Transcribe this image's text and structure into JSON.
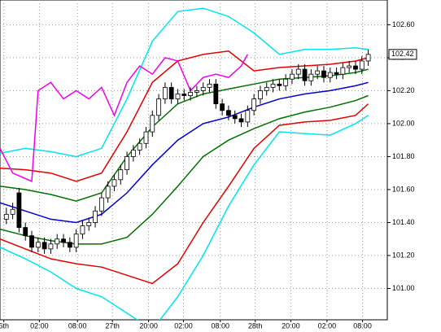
{
  "chart_data": {
    "type": "candlestick",
    "xlim": [
      0,
      61
    ],
    "ylim": [
      100.81,
      102.75
    ],
    "yticks": [
      {
        "value": 101.0,
        "label": "101.00"
      },
      {
        "value": 101.2,
        "label": "101.20"
      },
      {
        "value": 101.4,
        "label": "101.40"
      },
      {
        "value": 101.6,
        "label": "101.60"
      },
      {
        "value": 101.8,
        "label": "101.80"
      },
      {
        "value": 102.0,
        "label": "102.00"
      },
      {
        "value": 102.2,
        "label": "102.20"
      },
      {
        "value": 102.4,
        "label": "102.40"
      },
      {
        "value": 102.6,
        "label": "102.60"
      }
    ],
    "xticks": [
      {
        "value": 0.6,
        "label": "6th"
      },
      {
        "value": 6.2,
        "label": "02:00"
      },
      {
        "value": 12.2,
        "label": "08:00"
      },
      {
        "value": 17.7,
        "label": "27th"
      },
      {
        "value": 23.4,
        "label": "20:00"
      },
      {
        "value": 28.9,
        "label": "02:00"
      },
      {
        "value": 34.7,
        "label": "08:00"
      },
      {
        "value": 40.2,
        "label": "28th"
      },
      {
        "value": 45.8,
        "label": "20:00"
      },
      {
        "value": 51.5,
        "label": "02:00"
      },
      {
        "value": 57.1,
        "label": "08:00"
      }
    ],
    "grid": true,
    "candles": {
      "x": [
        1,
        2,
        3,
        4,
        5,
        6,
        7,
        8,
        9,
        10,
        11,
        12,
        13,
        14,
        15,
        16,
        17,
        18,
        19,
        20,
        21,
        22,
        23,
        24,
        25,
        26,
        27,
        28,
        29,
        30,
        31,
        32,
        33,
        34,
        35,
        36,
        37,
        38,
        39,
        40,
        41,
        42,
        43,
        44,
        45,
        46,
        47,
        48,
        49,
        50,
        51,
        52,
        53,
        54,
        55,
        56,
        57,
        58
      ],
      "open": [
        101.42,
        101.45,
        101.58,
        101.37,
        101.32,
        101.25,
        101.28,
        101.24,
        101.27,
        101.3,
        101.28,
        101.25,
        101.33,
        101.38,
        101.4,
        101.47,
        101.55,
        101.62,
        101.66,
        101.72,
        101.8,
        101.84,
        101.88,
        101.95,
        102.05,
        102.15,
        102.22,
        102.15,
        102.18,
        102.17,
        102.19,
        102.2,
        102.22,
        102.24,
        102.12,
        102.08,
        102.05,
        102.03,
        102.01,
        102.08,
        102.15,
        102.2,
        102.22,
        102.24,
        102.23,
        102.27,
        102.3,
        102.33,
        102.26,
        102.3,
        102.32,
        102.28,
        102.31,
        102.3,
        102.34,
        102.35,
        102.33,
        102.38
      ],
      "high": [
        101.49,
        101.52,
        101.61,
        101.4,
        101.35,
        101.31,
        101.31,
        101.3,
        101.33,
        101.33,
        101.31,
        101.36,
        101.41,
        101.43,
        101.5,
        101.58,
        101.65,
        101.69,
        101.75,
        101.83,
        101.87,
        101.91,
        101.98,
        102.08,
        102.18,
        102.25,
        102.25,
        102.21,
        102.21,
        102.22,
        102.23,
        102.25,
        102.27,
        102.27,
        102.15,
        102.11,
        102.08,
        102.06,
        102.11,
        102.18,
        102.23,
        102.25,
        102.27,
        102.27,
        102.3,
        102.33,
        102.36,
        102.36,
        102.33,
        102.35,
        102.35,
        102.34,
        102.34,
        102.37,
        102.38,
        102.38,
        102.41,
        102.45
      ],
      "low": [
        101.39,
        101.42,
        101.34,
        101.29,
        101.22,
        101.22,
        101.21,
        101.21,
        101.24,
        101.25,
        101.22,
        101.22,
        101.3,
        101.35,
        101.37,
        101.44,
        101.52,
        101.59,
        101.63,
        101.69,
        101.77,
        101.81,
        101.85,
        101.92,
        102.02,
        102.12,
        102.12,
        102.12,
        102.14,
        102.14,
        102.16,
        102.17,
        102.19,
        102.09,
        102.05,
        102.02,
        102.0,
        101.98,
        101.98,
        102.05,
        102.12,
        102.17,
        102.19,
        102.2,
        102.2,
        102.24,
        102.27,
        102.23,
        102.23,
        102.27,
        102.25,
        102.25,
        102.27,
        102.27,
        102.31,
        102.3,
        102.3,
        102.35
      ],
      "close": [
        101.45,
        101.48,
        101.37,
        101.32,
        101.25,
        101.28,
        101.24,
        101.27,
        101.3,
        101.28,
        101.25,
        101.33,
        101.38,
        101.4,
        101.47,
        101.55,
        101.62,
        101.66,
        101.72,
        101.8,
        101.84,
        101.88,
        101.95,
        102.05,
        102.15,
        102.22,
        102.15,
        102.18,
        102.17,
        102.19,
        102.2,
        102.22,
        102.24,
        102.12,
        102.08,
        102.05,
        102.03,
        102.01,
        102.08,
        102.15,
        102.2,
        102.22,
        102.24,
        102.23,
        102.27,
        102.3,
        102.33,
        102.26,
        102.3,
        102.32,
        102.28,
        102.31,
        102.3,
        102.34,
        102.35,
        102.33,
        102.38,
        102.42
      ]
    },
    "series": [
      {
        "color": "#00e5ee",
        "x": [
          0,
          4,
          8,
          12,
          16,
          20,
          24,
          28,
          32,
          36,
          40,
          44,
          48,
          52,
          56,
          58
        ],
        "values": [
          101.82,
          101.85,
          101.83,
          101.8,
          101.85,
          102.15,
          102.5,
          102.68,
          102.7,
          102.65,
          102.55,
          102.42,
          102.45,
          102.45,
          102.46,
          102.45
        ]
      },
      {
        "color": "#00e5ee",
        "x": [
          0,
          4,
          8,
          12,
          16,
          20,
          24,
          28,
          32,
          36,
          40,
          44,
          48,
          52,
          56,
          58
        ],
        "values": [
          101.25,
          101.18,
          101.1,
          101.0,
          100.95,
          100.85,
          100.75,
          100.95,
          101.2,
          101.5,
          101.75,
          101.95,
          101.94,
          101.93,
          102.0,
          102.05
        ]
      },
      {
        "color": "#e00000",
        "x": [
          0,
          4,
          8,
          12,
          16,
          20,
          24,
          28,
          32,
          36,
          40,
          44,
          48,
          52,
          56,
          58
        ],
        "values": [
          101.73,
          101.72,
          101.7,
          101.65,
          101.7,
          101.95,
          102.25,
          102.38,
          102.42,
          102.44,
          102.32,
          102.34,
          102.35,
          102.36,
          102.38,
          102.4
        ]
      },
      {
        "color": "#e00000",
        "x": [
          0,
          4,
          8,
          12,
          16,
          20,
          24,
          28,
          32,
          36,
          40,
          44,
          48,
          52,
          56,
          58
        ],
        "values": [
          101.3,
          101.24,
          101.18,
          101.15,
          101.13,
          101.08,
          101.03,
          101.15,
          101.4,
          101.62,
          101.85,
          101.99,
          102.01,
          102.02,
          102.05,
          102.12
        ]
      },
      {
        "color": "#007000",
        "x": [
          0,
          4,
          8,
          12,
          16,
          20,
          24,
          28,
          32,
          36,
          40,
          44,
          48,
          52,
          56,
          58
        ],
        "values": [
          101.62,
          101.6,
          101.57,
          101.53,
          101.58,
          101.8,
          101.98,
          102.12,
          102.18,
          102.21,
          102.24,
          102.27,
          102.28,
          102.29,
          102.31,
          102.33
        ]
      },
      {
        "color": "#007000",
        "x": [
          0,
          4,
          8,
          12,
          16,
          20,
          24,
          28,
          32,
          36,
          40,
          44,
          48,
          52,
          56,
          58
        ],
        "values": [
          101.36,
          101.32,
          101.29,
          101.27,
          101.27,
          101.31,
          101.45,
          101.62,
          101.8,
          101.9,
          101.97,
          102.03,
          102.07,
          102.1,
          102.14,
          102.17
        ]
      },
      {
        "color": "#0000cc",
        "x": [
          0,
          4,
          8,
          12,
          16,
          20,
          24,
          28,
          32,
          36,
          40,
          44,
          48,
          52,
          56,
          58
        ],
        "values": [
          101.52,
          101.47,
          101.42,
          101.4,
          101.45,
          101.58,
          101.75,
          101.9,
          102.0,
          102.04,
          102.1,
          102.15,
          102.18,
          102.2,
          102.23,
          102.25
        ]
      },
      {
        "color": "#ee00ee",
        "x": [
          0,
          2,
          5,
          6,
          8,
          10,
          12,
          14,
          16,
          18,
          20,
          22,
          24,
          26,
          28,
          30,
          32,
          34,
          36,
          38,
          39
        ],
        "values": [
          101.85,
          101.7,
          101.65,
          102.2,
          102.25,
          102.15,
          102.2,
          102.15,
          102.22,
          102.05,
          102.25,
          102.35,
          102.3,
          102.4,
          102.38,
          102.2,
          102.28,
          102.3,
          102.28,
          102.35,
          102.42
        ]
      }
    ]
  }
}
